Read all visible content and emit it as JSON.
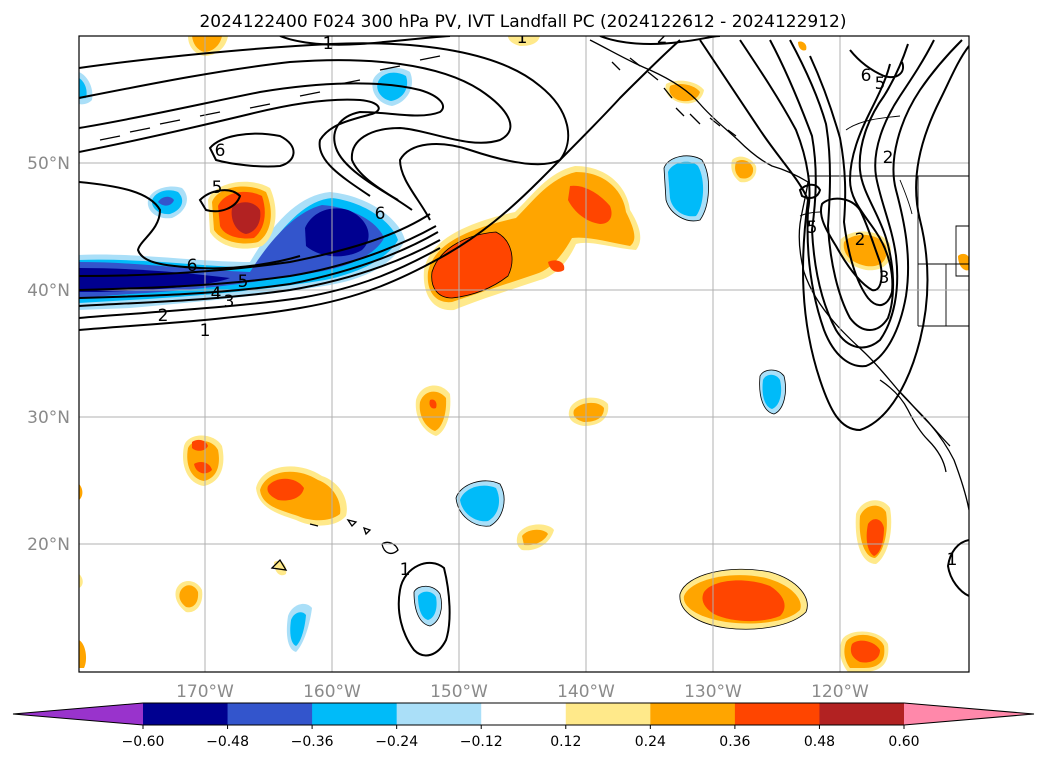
{
  "title": "2024122400 F024 300 hPa PV, IVT Landfall PC (2024122612 - 2024122912)",
  "map": {
    "lon_ticks": [
      "170°W",
      "160°W",
      "150°W",
      "140°W",
      "130°W",
      "120°W"
    ],
    "lat_ticks": [
      "50°N",
      "40°N",
      "30°N",
      "20°N"
    ]
  },
  "colorbar": {
    "ticks": [
      "−0.60",
      "−0.48",
      "−0.36",
      "−0.24",
      "−0.12",
      "0.12",
      "0.24",
      "0.36",
      "0.48",
      "0.60"
    ],
    "colors": {
      "under": "#9933cc",
      "bins": [
        "#000090",
        "#3355cc",
        "#00bbf9",
        "#aadff8",
        "#ffffff",
        "#ffe98a",
        "#ffa500",
        "#ff4500",
        "#b22222"
      ],
      "over": "#ff88aa"
    }
  },
  "contour_labels": [
    "1",
    "1",
    "1",
    "2",
    "2",
    "3",
    "3",
    "4",
    "5",
    "5",
    "5",
    "5",
    "6",
    "6",
    "6",
    "6",
    "2",
    "2",
    "1",
    "1"
  ]
}
